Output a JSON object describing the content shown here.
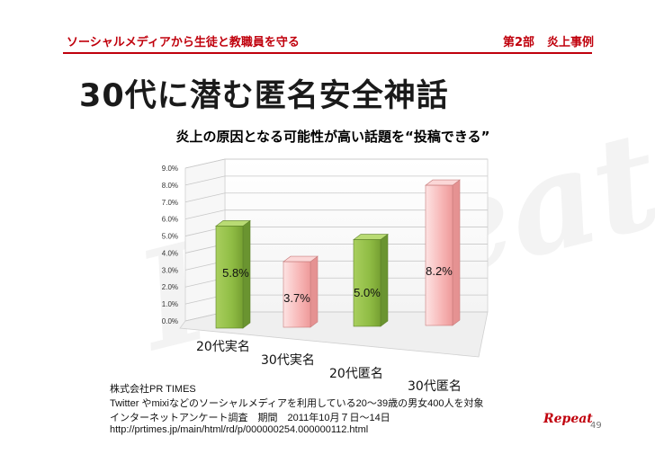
{
  "header": {
    "left_label": "ソーシャルメディアから生徒と教職員を守る",
    "part_label": "第2部",
    "section_label": "炎上事例"
  },
  "slide": {
    "title": "30代に潜む匿名安全神話",
    "page_number": "49",
    "watermark_text": "Repeat",
    "logo_text": "Repeat"
  },
  "source": {
    "line1": "株式会社PR TIMES",
    "line2": "Twitter やmixiなどのソーシャルメディアを利用している20～39歳の男女400人を対象",
    "line3": "インターネットアンケート調査　期間　2011年10月７日～14日",
    "line4": "http://prtimes.jp/main/html/rd/p/000000254.000000112.html"
  },
  "colors": {
    "accent": "#c0000c",
    "green_bar": "#8fbc44",
    "pink_bar": "#f7b6b6"
  },
  "chart_data": {
    "type": "bar",
    "title": "炎上の原因となる可能性が高い話題を“投稿できる”",
    "categories": [
      "20代実名",
      "30代実名",
      "20代匿名",
      "30代匿名"
    ],
    "values": [
      5.8,
      3.7,
      5.0,
      8.2
    ],
    "data_labels": [
      "5.8%",
      "3.7%",
      "5.0%",
      "8.2%"
    ],
    "yticks": [
      "0.0%",
      "1.0%",
      "2.0%",
      "3.0%",
      "4.0%",
      "5.0%",
      "6.0%",
      "7.0%",
      "8.0%",
      "9.0%"
    ],
    "ylim": [
      0,
      9
    ],
    "grid": true,
    "legend": "none",
    "bar_colors": [
      "green",
      "pink",
      "green",
      "pink"
    ]
  }
}
